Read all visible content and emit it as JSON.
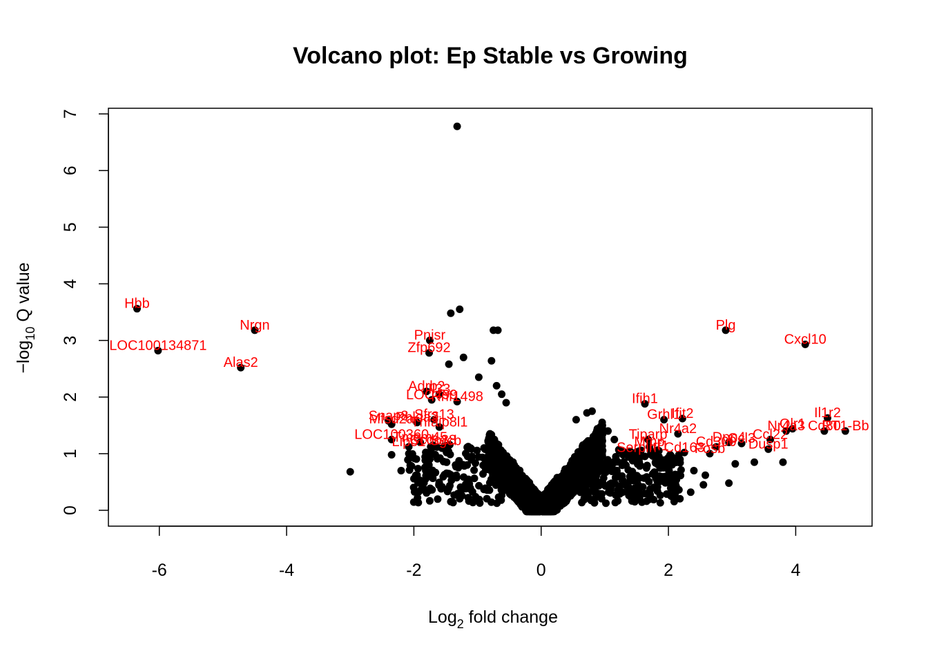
{
  "chart_data": {
    "type": "scatter",
    "title": "Volcano plot: Ep Stable vs Growing",
    "xlabel": {
      "prefix": "Log",
      "sub": "2",
      "suffix": " fold change"
    },
    "ylabel": {
      "prefix": "−log",
      "sub": "10",
      "suffix": " Q value"
    },
    "xlim": [
      -6.8,
      5.2
    ],
    "ylim": [
      -0.28,
      7.1
    ],
    "xticks": [
      -6,
      -4,
      -2,
      0,
      2,
      4
    ],
    "xtick_labels": [
      "-6",
      "-4",
      "-2",
      "0",
      "2",
      "4"
    ],
    "yticks": [
      0,
      1,
      2,
      3,
      4,
      5,
      6,
      7
    ],
    "ytick_labels": [
      "0",
      "1",
      "2",
      "3",
      "4",
      "5",
      "6",
      "7"
    ],
    "grid": false,
    "point_color": "#000000",
    "label_color": "#ff0000",
    "labeled_points": [
      {
        "name": "Hbb",
        "x": -6.35,
        "y": 3.56
      },
      {
        "name": "Nrgn",
        "x": -4.5,
        "y": 3.18
      },
      {
        "name": "LOC100134871",
        "x": -6.02,
        "y": 2.82
      },
      {
        "name": "Alas2",
        "x": -4.72,
        "y": 2.52
      },
      {
        "name": "Pnisr",
        "x": -1.75,
        "y": 3.0
      },
      {
        "name": "Zfp692",
        "x": -1.76,
        "y": 2.78
      },
      {
        "name": "Adrb2",
        "x": -1.8,
        "y": 2.1
      },
      {
        "name": "Il33",
        "x": -1.6,
        "y": 2.05
      },
      {
        "name": "LOC499",
        "x": -1.72,
        "y": 1.95
      },
      {
        "name": "Rnf1498",
        "x": -1.32,
        "y": 1.92
      },
      {
        "name": "Snap8",
        "x": -2.4,
        "y": 1.58
      },
      {
        "name": "Sfrs13",
        "x": -1.68,
        "y": 1.6
      },
      {
        "name": "Mfsd2a",
        "x": -2.35,
        "y": 1.52
      },
      {
        "name": "Phlda3",
        "x": -1.95,
        "y": 1.55
      },
      {
        "name": "Tnfaip8l1",
        "x": -1.6,
        "y": 1.47
      },
      {
        "name": "LOC100360",
        "x": -2.35,
        "y": 1.25
      },
      {
        "name": "Tmem45",
        "x": -1.9,
        "y": 1.2
      },
      {
        "name": "Lipo1",
        "x": -2.08,
        "y": 1.12
      },
      {
        "name": "Ccdc88",
        "x": -1.7,
        "y": 1.15
      },
      {
        "name": "Sgcb",
        "x": -1.5,
        "y": 1.14
      },
      {
        "name": "Plg",
        "x": 2.9,
        "y": 3.18
      },
      {
        "name": "Cxcl10",
        "x": 4.15,
        "y": 2.93
      },
      {
        "name": "Ifih1",
        "x": 1.63,
        "y": 1.88
      },
      {
        "name": "Grhl1",
        "x": 1.93,
        "y": 1.6
      },
      {
        "name": "Ifit2",
        "x": 2.22,
        "y": 1.62
      },
      {
        "name": "Nr4a2",
        "x": 2.15,
        "y": 1.35
      },
      {
        "name": "Tiparp",
        "x": 1.68,
        "y": 1.25
      },
      {
        "name": "Il1r2",
        "x": 4.5,
        "y": 1.63
      },
      {
        "name": "Nr4a3",
        "x": 3.85,
        "y": 1.4
      },
      {
        "name": "Olr1",
        "x": 3.95,
        "y": 1.44
      },
      {
        "name": "Cd80",
        "x": 4.45,
        "y": 1.4
      },
      {
        "name": "RT1-Bb",
        "x": 4.78,
        "y": 1.4
      },
      {
        "name": "Ccl22",
        "x": 3.6,
        "y": 1.25
      },
      {
        "name": "Dpp4",
        "x": 2.95,
        "y": 1.2
      },
      {
        "name": "Cd300",
        "x": 2.75,
        "y": 1.12
      },
      {
        "name": "Dusp1",
        "x": 3.57,
        "y": 1.08
      },
      {
        "name": "Serpin",
        "x": 1.5,
        "y": 1.02
      },
      {
        "name": "Mmp",
        "x": 1.7,
        "y": 1.12
      },
      {
        "name": "Irf1",
        "x": 1.85,
        "y": 1.05
      },
      {
        "name": "Cd163",
        "x": 2.25,
        "y": 1.02
      },
      {
        "name": "Fosb",
        "x": 2.65,
        "y": 1.0
      },
      {
        "name": "Ccl3",
        "x": 3.15,
        "y": 1.18
      }
    ],
    "unlabeled_points": [
      {
        "x": -1.32,
        "y": 6.78
      },
      {
        "x": -1.28,
        "y": 3.55
      },
      {
        "x": -1.42,
        "y": 3.48
      },
      {
        "x": -0.75,
        "y": 3.18
      },
      {
        "x": -0.68,
        "y": 3.18
      },
      {
        "x": -1.22,
        "y": 2.7
      },
      {
        "x": -0.78,
        "y": 2.64
      },
      {
        "x": -1.45,
        "y": 2.58
      },
      {
        "x": -0.98,
        "y": 2.35
      },
      {
        "x": -0.7,
        "y": 2.2
      },
      {
        "x": -0.62,
        "y": 2.05
      },
      {
        "x": -0.55,
        "y": 1.9
      },
      {
        "x": -3.0,
        "y": 0.68
      },
      {
        "x": -2.2,
        "y": 0.7
      },
      {
        "x": -2.35,
        "y": 0.98
      },
      {
        "x": -1.95,
        "y": 0.62
      },
      {
        "x": -1.9,
        "y": 0.48
      },
      {
        "x": 0.8,
        "y": 1.75
      },
      {
        "x": 0.72,
        "y": 1.72
      },
      {
        "x": 0.55,
        "y": 1.6
      },
      {
        "x": 1.05,
        "y": 1.4
      },
      {
        "x": 1.15,
        "y": 1.25
      },
      {
        "x": 3.05,
        "y": 0.82
      },
      {
        "x": 3.35,
        "y": 0.85
      },
      {
        "x": 3.8,
        "y": 0.85
      },
      {
        "x": 2.95,
        "y": 0.48
      },
      {
        "x": 2.58,
        "y": 0.62
      },
      {
        "x": 2.55,
        "y": 0.45
      },
      {
        "x": 2.35,
        "y": 0.32
      },
      {
        "x": 2.05,
        "y": 0.45
      },
      {
        "x": 2.4,
        "y": 0.7
      }
    ]
  }
}
